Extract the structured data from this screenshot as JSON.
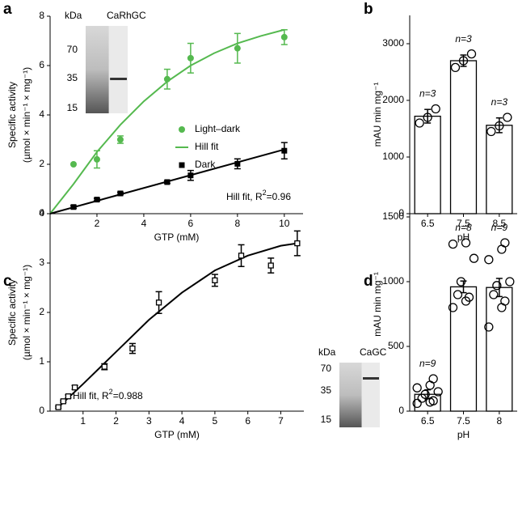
{
  "chart_data": [
    {
      "type": "scatter",
      "panel": "a",
      "xlabel": "GTP (mM)",
      "ylabel": [
        "Specific activity",
        "(µmol × min⁻¹ × mg⁻¹)"
      ],
      "xlim": [
        0,
        10.8
      ],
      "xticks": [
        2,
        4,
        6,
        8,
        10
      ],
      "ylim": [
        0,
        8
      ],
      "yticks": [
        0,
        2,
        4,
        6,
        8
      ],
      "legend": "right",
      "series": [
        {
          "name": "Light–dark",
          "color": "#55b94f",
          "mode": "markers",
          "marker": "circle",
          "x": [
            1,
            2,
            3,
            5,
            6,
            8,
            10
          ],
          "values": [
            2.0,
            2.2,
            3.0,
            5.45,
            6.3,
            6.7,
            7.15
          ],
          "errors": [
            0,
            0.35,
            0.15,
            0.4,
            0.6,
            0.6,
            0.3
          ]
        },
        {
          "name": "Hill fit",
          "color": "#55b94f",
          "mode": "line",
          "x": [
            0,
            1,
            2,
            3,
            4,
            5,
            6,
            7,
            8,
            9,
            10
          ],
          "values": [
            0,
            1.2,
            2.5,
            3.6,
            4.55,
            5.35,
            6.0,
            6.5,
            6.9,
            7.2,
            7.45
          ]
        },
        {
          "name": "Dark",
          "color": "#000000",
          "mode": "markers",
          "marker": "square",
          "x": [
            1,
            2,
            3,
            5,
            6,
            8,
            10
          ],
          "values": [
            0.27,
            0.57,
            0.82,
            1.28,
            1.55,
            2.02,
            2.55
          ],
          "errors": [
            0.05,
            0.05,
            0.05,
            0.05,
            0.2,
            0.2,
            0.33
          ]
        },
        {
          "color": "#000000",
          "mode": "line",
          "x": [
            0,
            10
          ],
          "values": [
            0,
            2.6
          ]
        }
      ],
      "annotation": {
        "text": "Hill fit, R",
        "sup": "2",
        "suffix": "=0.96"
      },
      "inset": {
        "unit": "kDa",
        "title": "CaRhGC",
        "markers": [
          "70",
          "35",
          "15"
        ]
      }
    },
    {
      "type": "bar",
      "panel": "b",
      "xlabel": "pH",
      "ylabel": [
        "mAU min mg⁻¹"
      ],
      "color": "#ffffff",
      "categories": [
        "6.5",
        "7.5",
        "8.5"
      ],
      "values": [
        1720,
        2700,
        1560
      ],
      "errors": [
        120,
        100,
        130
      ],
      "points": [
        [
          1600,
          1700,
          1850
        ],
        [
          2580,
          2700,
          2820
        ],
        [
          1450,
          1550,
          1700
        ]
      ],
      "n_labels": [
        "n=3",
        "n=3",
        "n=3"
      ],
      "ylim": [
        0,
        3500
      ],
      "yticks": [
        0,
        1000,
        2000,
        3000
      ]
    },
    {
      "type": "scatter",
      "panel": "c",
      "xlabel": "GTP (mM)",
      "ylabel": [
        "Specific activity",
        "(µmol × min⁻¹ × mg⁻¹)"
      ],
      "xlim": [
        0,
        7.7
      ],
      "xticks": [
        1,
        2,
        3,
        4,
        5,
        6,
        7
      ],
      "ylim": [
        0,
        4
      ],
      "yticks": [
        0,
        1,
        2,
        3,
        4
      ],
      "series": [
        {
          "color": "#000000",
          "mode": "markers",
          "marker": "open-square",
          "x": [
            0.25,
            0.4,
            0.55,
            0.75,
            1.65,
            2.5,
            3.3,
            5,
            5.8,
            6.7,
            7.5
          ],
          "values": [
            0.08,
            0.2,
            0.3,
            0.48,
            0.9,
            1.27,
            2.2,
            2.65,
            3.15,
            2.95,
            3.4
          ],
          "errors": [
            0.02,
            0.02,
            0.03,
            0.04,
            0.06,
            0.1,
            0.22,
            0.12,
            0.22,
            0.15,
            0.25
          ]
        },
        {
          "color": "#000000",
          "mode": "line",
          "x": [
            0.25,
            1,
            2,
            3,
            4,
            5,
            6,
            7,
            7.5
          ],
          "values": [
            0.08,
            0.55,
            1.2,
            1.85,
            2.4,
            2.85,
            3.15,
            3.35,
            3.4
          ]
        }
      ],
      "annotation": {
        "text": "Hill fit, R",
        "sup": "2",
        "suffix": "=0.988"
      },
      "inset": {
        "unit": "kDa",
        "title": "CaGC",
        "markers": [
          "70",
          "35",
          "15"
        ]
      }
    },
    {
      "type": "bar",
      "panel": "d",
      "xlabel": "pH",
      "ylabel": [
        "mAU min mg⁻¹"
      ],
      "color": "#ffffff",
      "categories": [
        "6.5",
        "7.5",
        "8"
      ],
      "values": [
        130,
        960,
        955
      ],
      "errors": [
        35,
        45,
        70
      ],
      "points": [
        [
          60,
          70,
          80,
          100,
          130,
          150,
          180,
          200,
          250
        ],
        [
          800,
          850,
          880,
          900,
          1000,
          1180,
          1290,
          1300
        ],
        [
          650,
          800,
          850,
          900,
          970,
          1000,
          1170,
          1250,
          1300
        ]
      ],
      "n_labels": [
        "n=9",
        "n=8",
        "n=9"
      ],
      "ylim": [
        0,
        1650
      ],
      "yticks": [
        0,
        500,
        1000,
        1500
      ]
    }
  ]
}
